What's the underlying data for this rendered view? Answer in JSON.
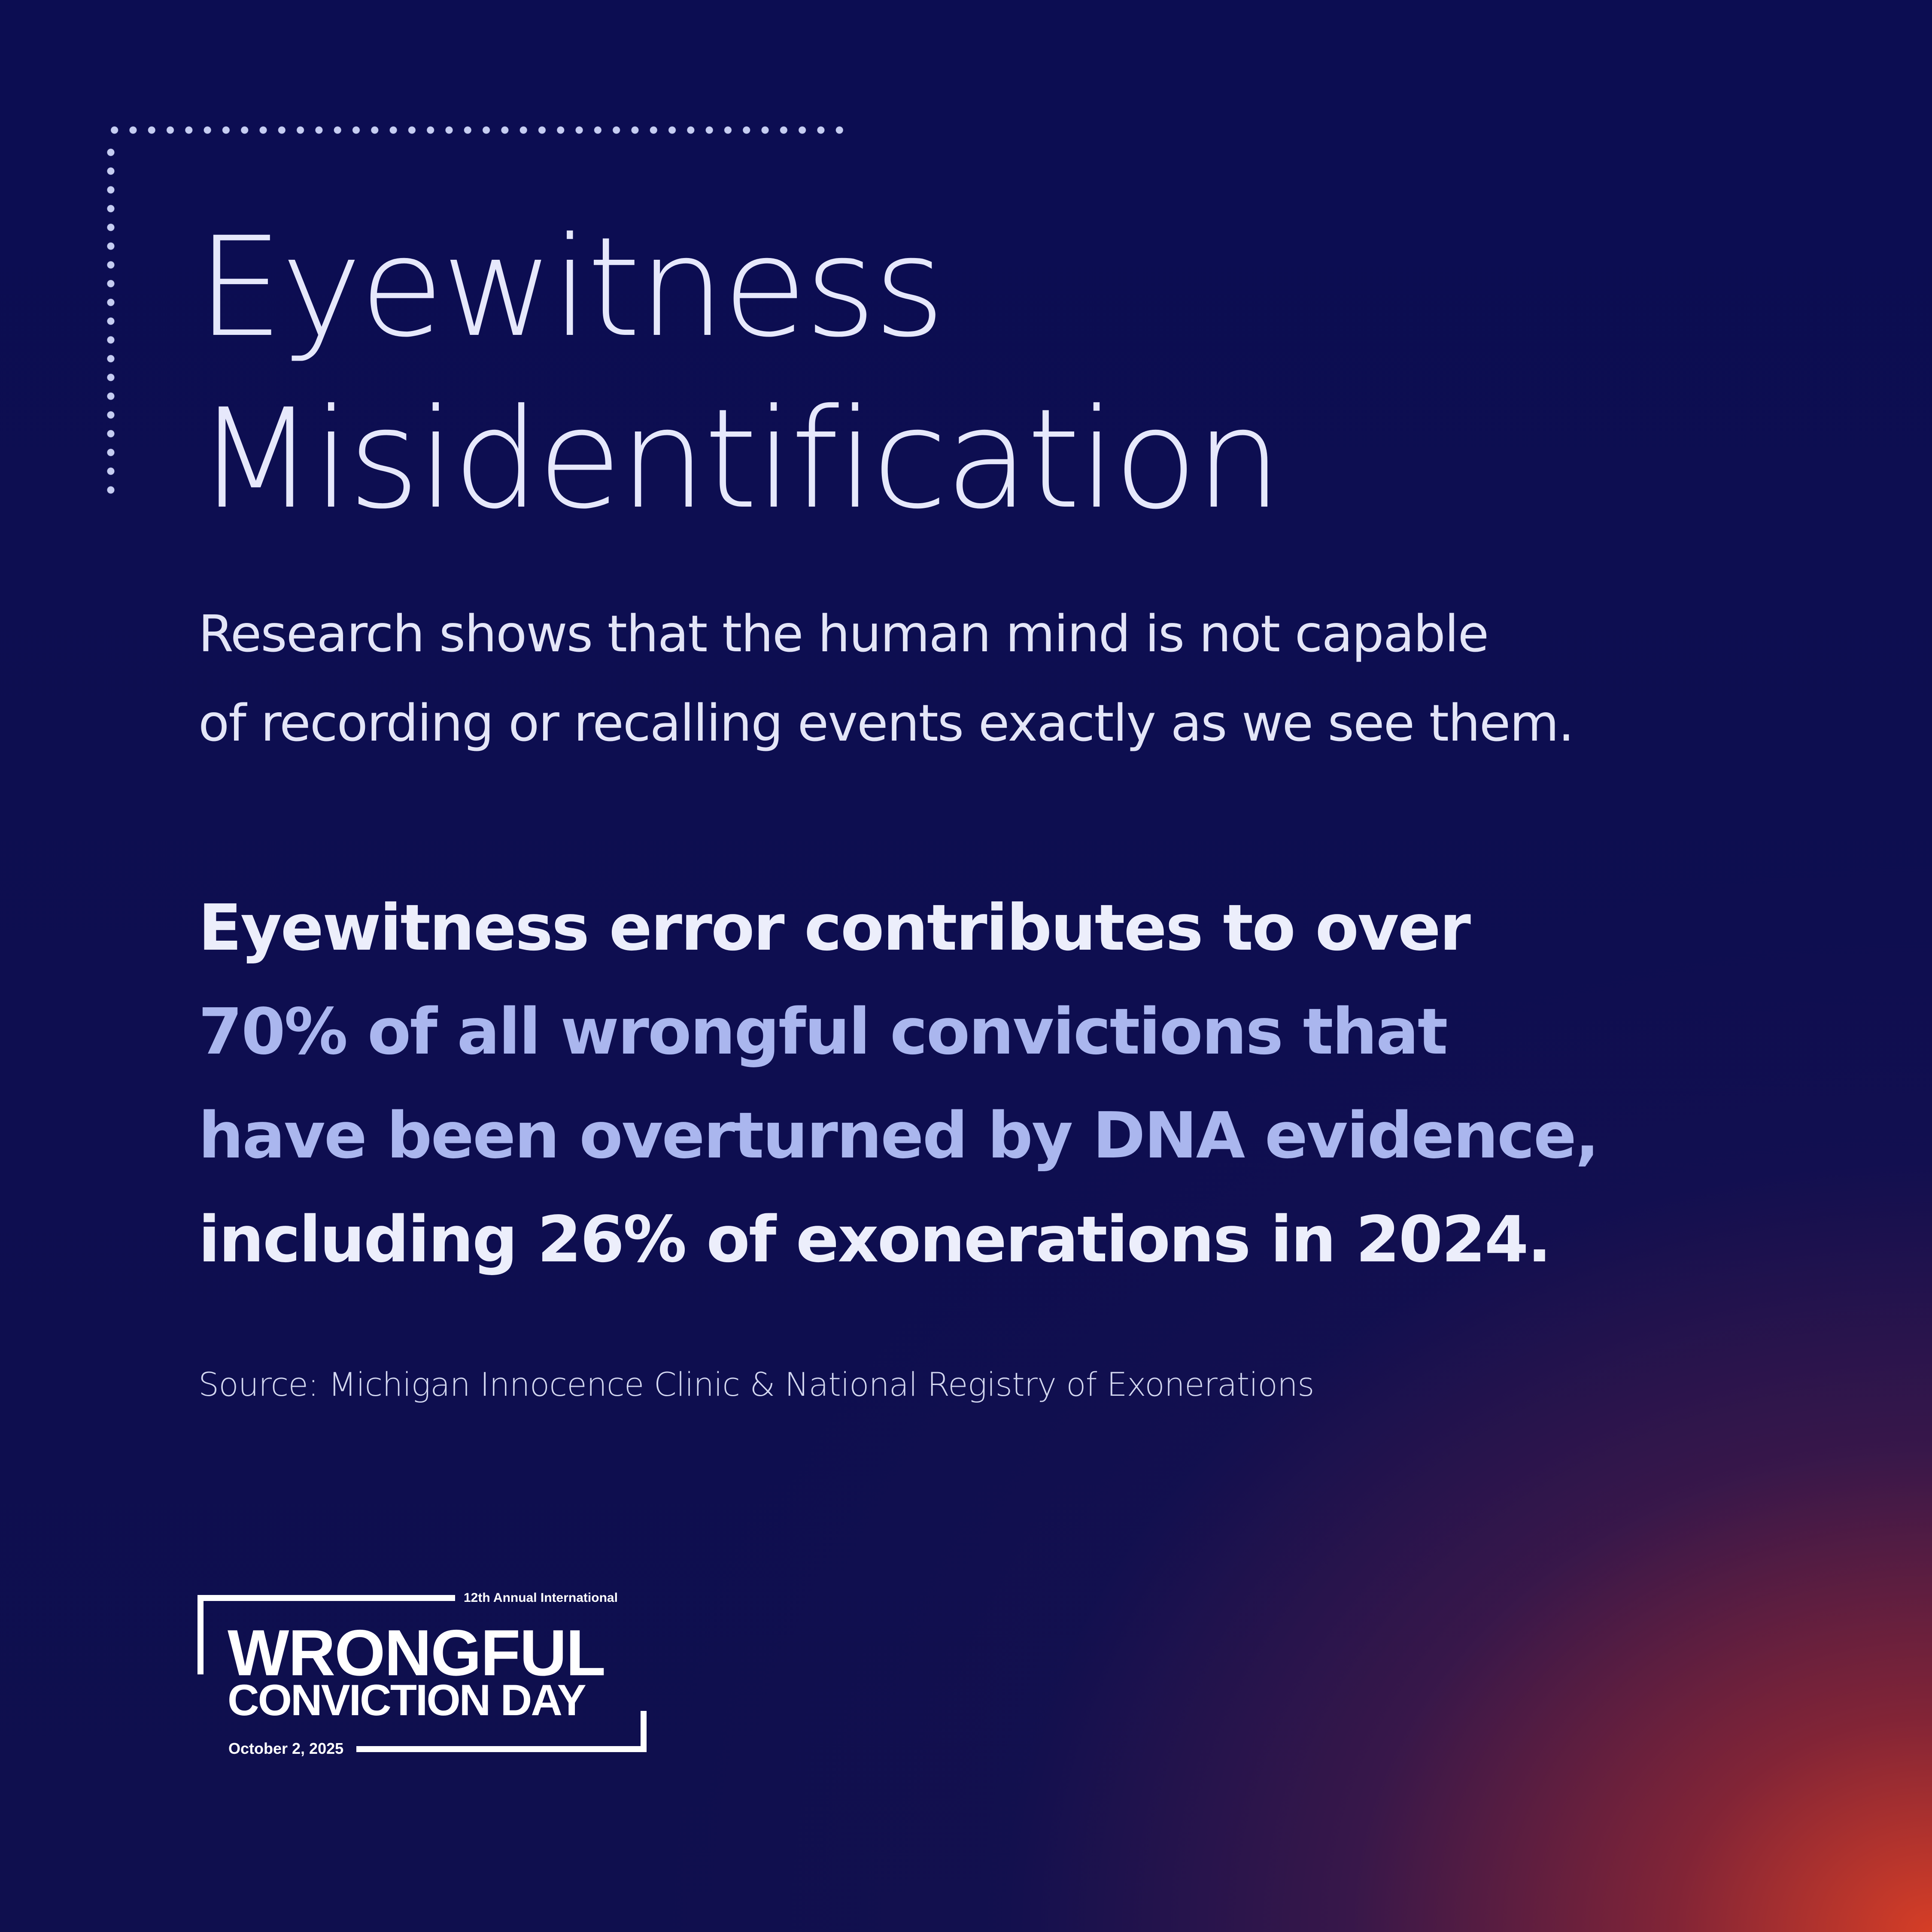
{
  "title": {
    "line1": "Eyewitness",
    "line2": "Misidentification"
  },
  "intro": {
    "line1": "Research shows that the human mind is not capable",
    "line2": "of recording or recalling events exactly as we see them."
  },
  "statement": {
    "part1": "Eyewitness error contributes to over",
    "highlight1": "70% of all wrongful convictions that",
    "highlight2": "have been overturned by DNA evidence,",
    "part2": "including 26% of exonerations in 2024."
  },
  "source": "Source: Michigan Innocence Clinic & National Registry of Exonerations",
  "logo": {
    "kicker": "12th Annual International",
    "line1": "WRONGFUL",
    "line2": "CONVICTION DAY",
    "date": "October 2, 2025"
  },
  "colors": {
    "background_top": "#0c0d52",
    "background_corner": "#d63e26",
    "text": "#e6e8fb",
    "highlight": "#aab6ee",
    "dots": "#c6cdf2"
  }
}
